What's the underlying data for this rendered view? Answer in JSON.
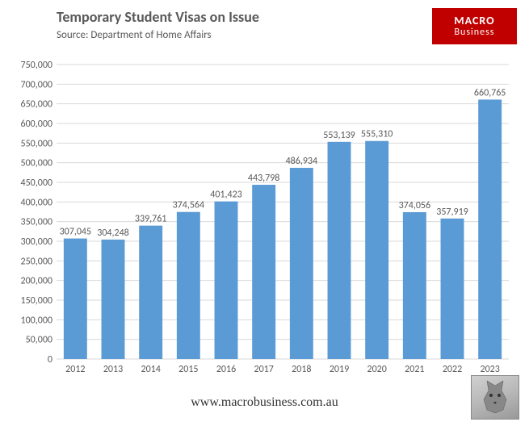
{
  "header": {
    "title": "Temporary Student Visas on Issue",
    "subtitle": "Source: Department of Home Affairs",
    "logo_line1": "MACRO",
    "logo_line2": "Business"
  },
  "chart": {
    "type": "bar",
    "categories": [
      "2012",
      "2013",
      "2014",
      "2015",
      "2016",
      "2017",
      "2018",
      "2019",
      "2020",
      "2021",
      "2022",
      "2023"
    ],
    "values": [
      307045,
      304248,
      339761,
      374564,
      401423,
      443798,
      486934,
      553139,
      555310,
      374056,
      357919,
      660765
    ],
    "value_labels": [
      "307,045",
      "304,248",
      "339,761",
      "374,564",
      "401,423",
      "443,798",
      "486,934",
      "553,139",
      "555,310",
      "374,056",
      "357,919",
      "660,765"
    ],
    "ylim": [
      0,
      750000
    ],
    "ytick_step": 50000,
    "ytick_labels": [
      "0",
      "50,000",
      "100,000",
      "150,000",
      "200,000",
      "250,000",
      "300,000",
      "350,000",
      "400,000",
      "450,000",
      "500,000",
      "550,000",
      "600,000",
      "650,000",
      "700,000",
      "750,000"
    ],
    "bar_color": "#5b9bd5",
    "grid_color": "#d9d9d9",
    "text_color": "#595959",
    "background_color": "#ffffff",
    "bar_width": 0.62,
    "title_fontsize": 18,
    "subtitle_fontsize": 13,
    "label_fontsize": 12
  },
  "footer": {
    "url": "www.macrobusiness.com.au",
    "logo_icon": "fox-icon"
  },
  "brand": {
    "logo_bg": "#c00000",
    "logo_fg": "#ffffff"
  }
}
